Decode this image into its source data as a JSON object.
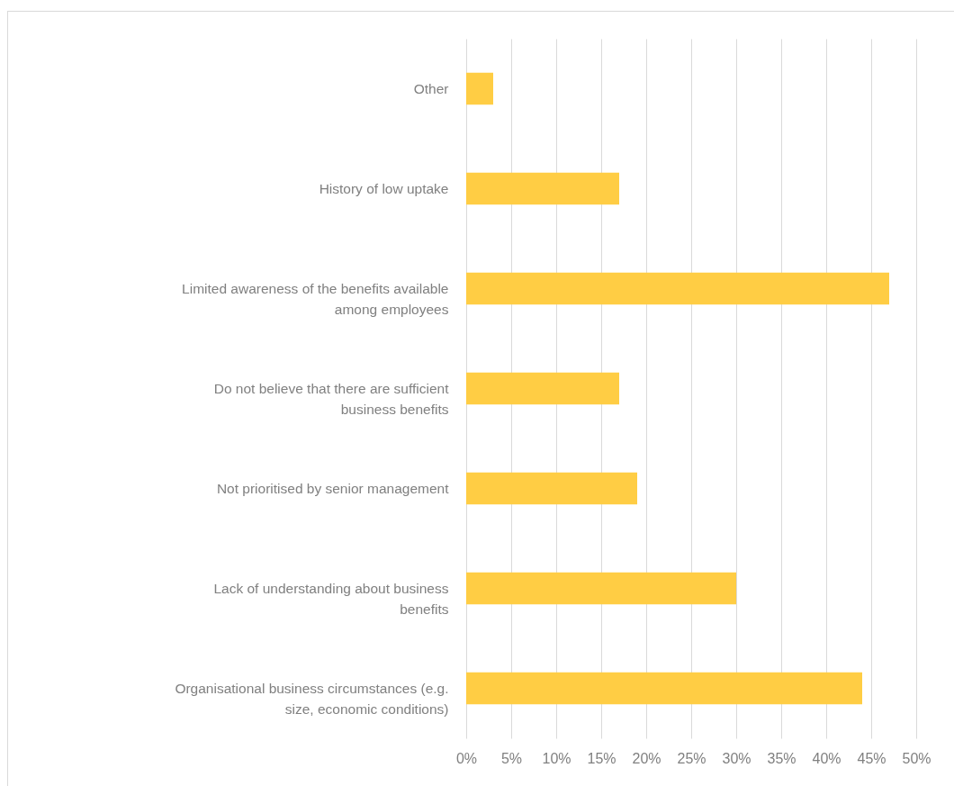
{
  "chart_data": {
    "type": "bar",
    "orientation": "horizontal",
    "categories": [
      "Other",
      "History of low uptake",
      "Limited awareness of the benefits available among employees",
      "Do not believe that there are sufficient business benefits",
      "Not prioritised by senior management",
      "Lack of understanding about business benefits",
      "Organisational business circumstances (e.g. size, economic conditions)"
    ],
    "values": [
      3,
      17,
      47,
      17,
      19,
      30,
      44
    ],
    "color": "#ffcd44",
    "xlim": [
      0,
      50
    ],
    "xticks": [
      {
        "value": 0,
        "label": "0%"
      },
      {
        "value": 5,
        "label": "5%"
      },
      {
        "value": 10,
        "label": "10%"
      },
      {
        "value": 15,
        "label": "15%"
      },
      {
        "value": 20,
        "label": "20%"
      },
      {
        "value": 25,
        "label": "25%"
      },
      {
        "value": 30,
        "label": "30%"
      },
      {
        "value": 35,
        "label": "35%"
      },
      {
        "value": 40,
        "label": "40%"
      },
      {
        "value": 45,
        "label": "45%"
      },
      {
        "value": 50,
        "label": "50%"
      }
    ],
    "grid": "x"
  }
}
